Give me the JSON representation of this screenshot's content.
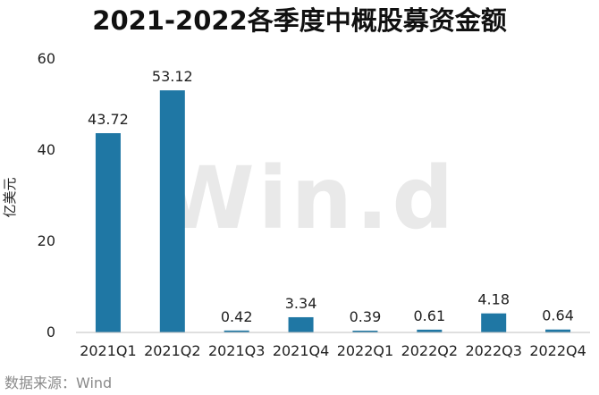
{
  "chart_data": {
    "type": "bar",
    "title": "2021-2022各季度中概股募资金额",
    "ylabel": "亿美元",
    "xlabel": "",
    "categories": [
      "2021Q1",
      "2021Q2",
      "2021Q3",
      "2021Q4",
      "2022Q1",
      "2022Q2",
      "2022Q3",
      "2022Q4"
    ],
    "values": [
      43.72,
      53.12,
      0.42,
      3.34,
      0.39,
      0.61,
      4.18,
      0.64
    ],
    "data_labels": [
      "43.72",
      "53.12",
      "0.42",
      "3.34",
      "0.39",
      "0.61",
      "4.18",
      "0.64"
    ],
    "ylim": [
      0,
      60
    ],
    "yticks": [
      0,
      20,
      40,
      60
    ],
    "grid": false,
    "bar_color": "#1f77a4"
  },
  "source": "数据来源：Wind",
  "watermark": "Win.d"
}
